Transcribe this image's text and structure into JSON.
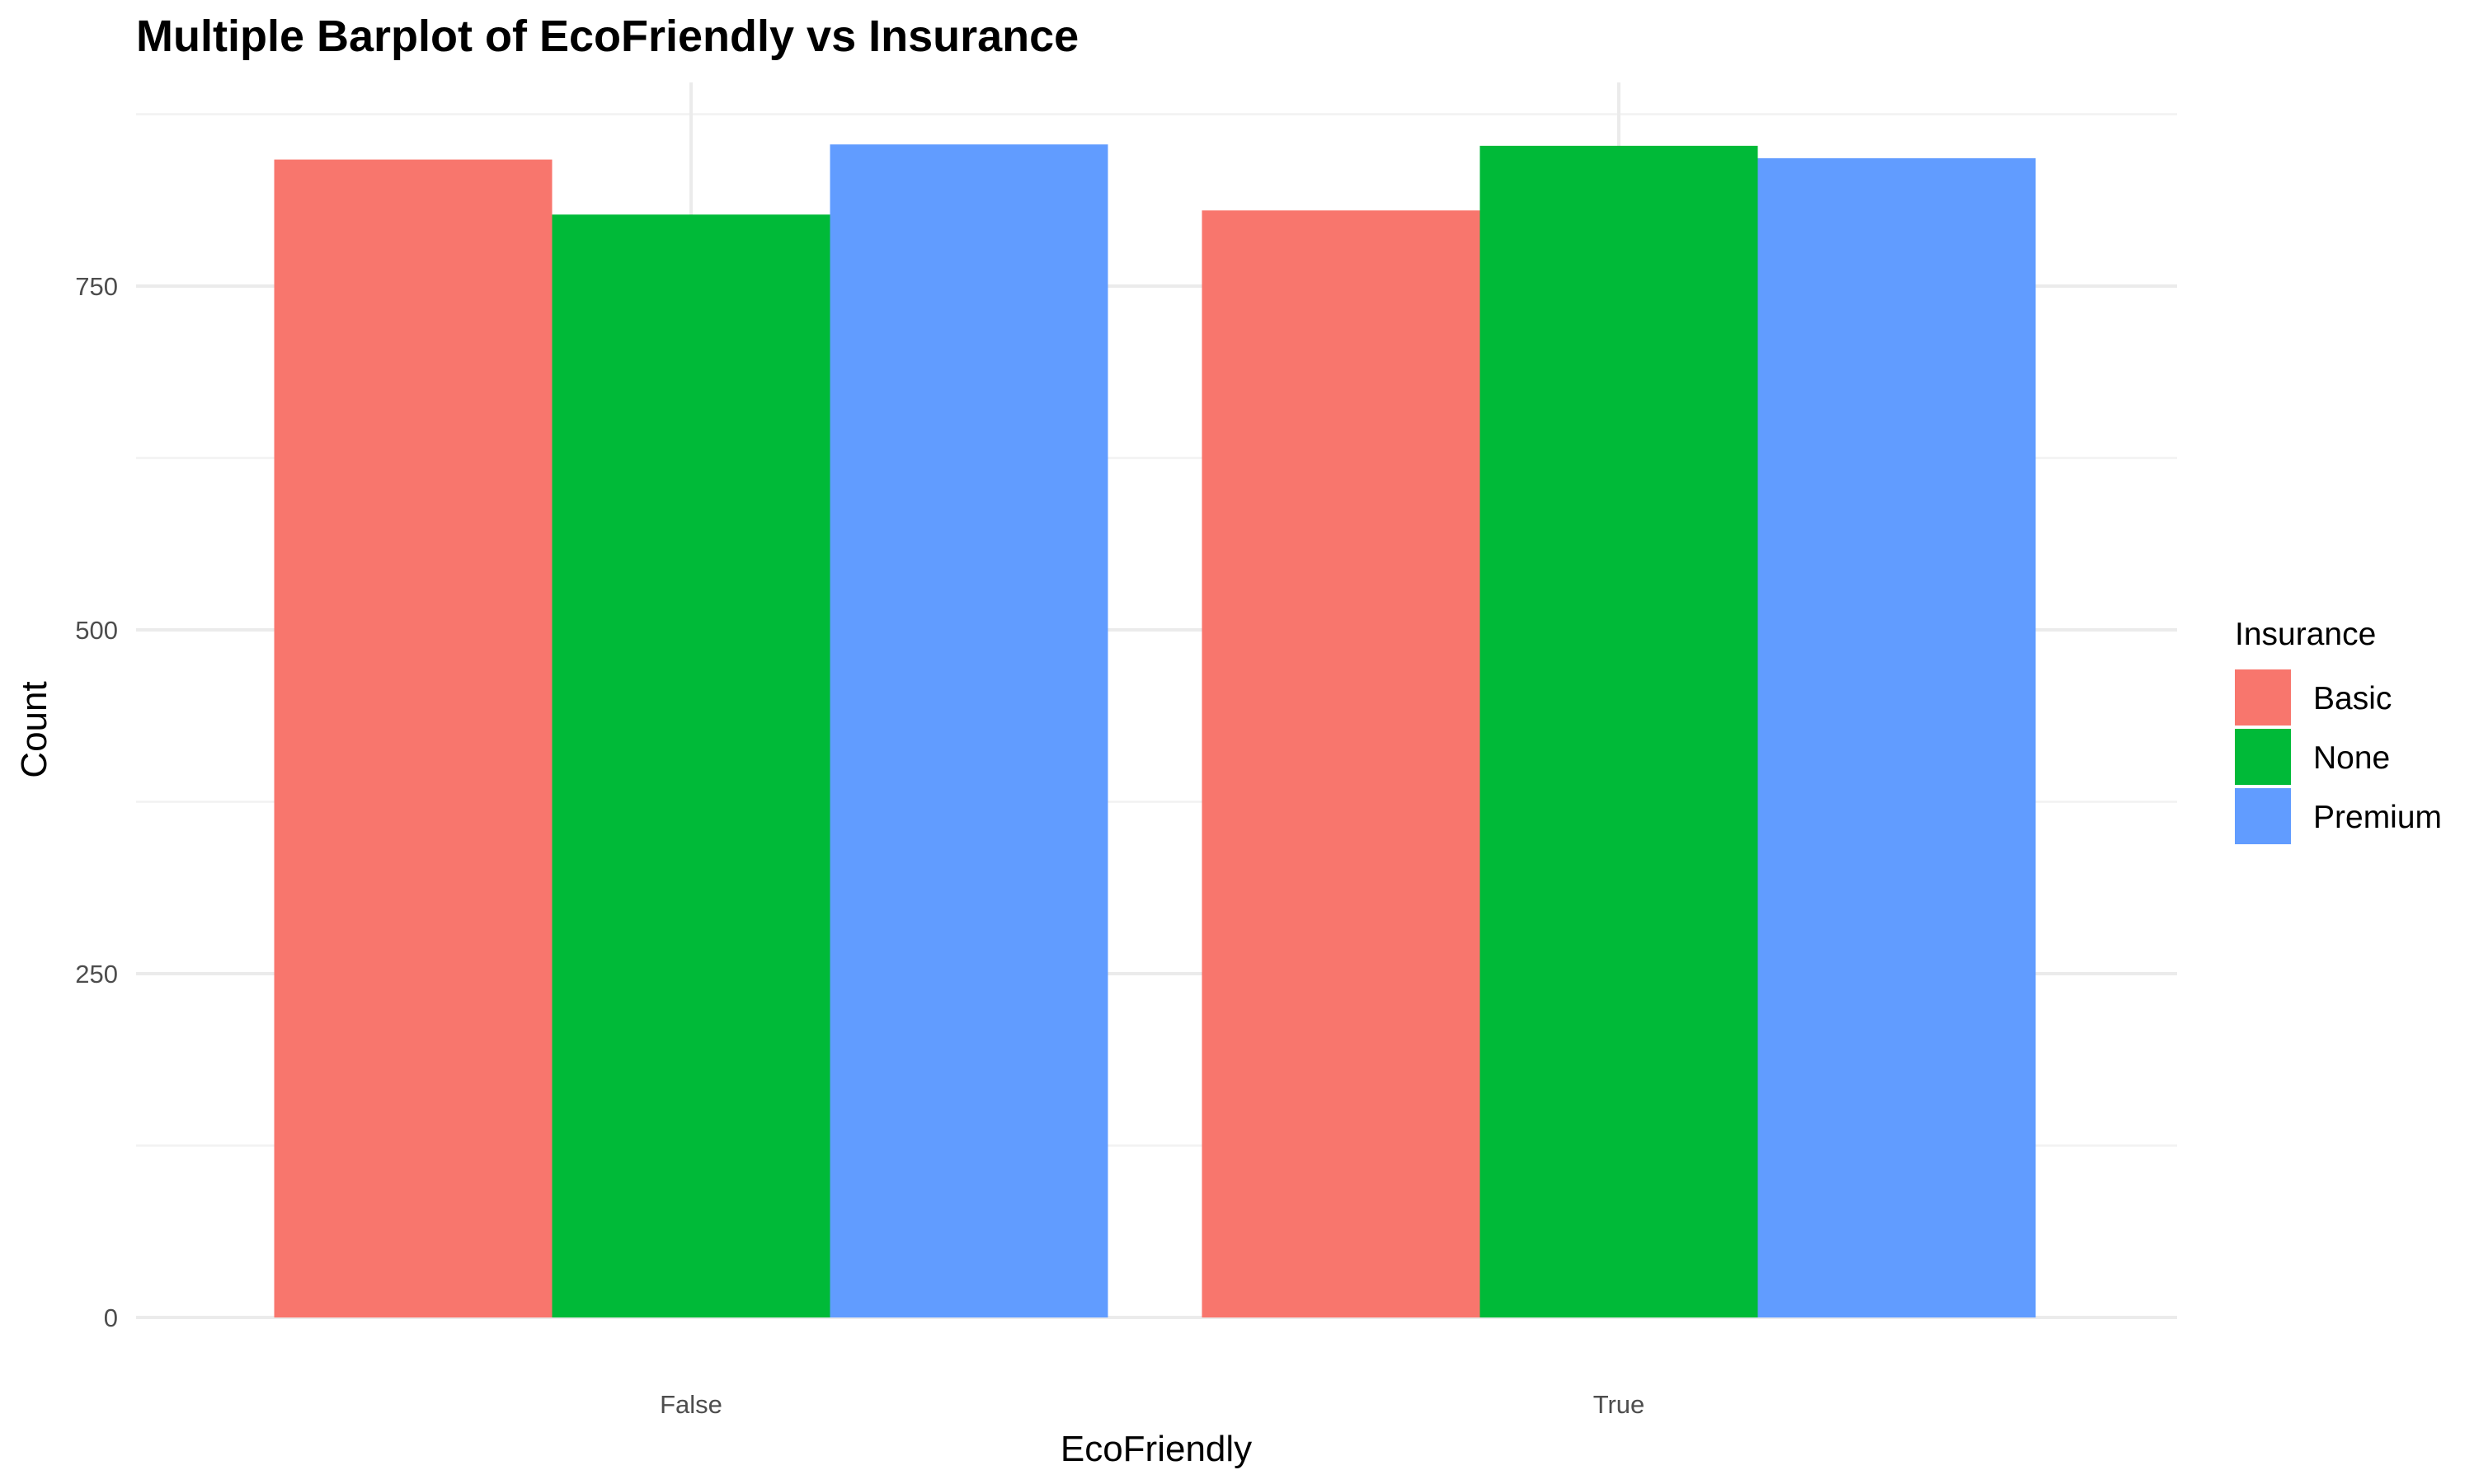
{
  "chart_data": {
    "type": "bar",
    "title": "Multiple Barplot of EcoFriendly vs Insurance",
    "xlabel": "EcoFriendly",
    "ylabel": "Count",
    "categories": [
      "False",
      "True"
    ],
    "series": [
      {
        "name": "Basic",
        "color": "#F8766D",
        "values": [
          842,
          805
        ]
      },
      {
        "name": "None",
        "color": "#00BA38",
        "values": [
          802,
          852
        ]
      },
      {
        "name": "Premium",
        "color": "#619CFF",
        "values": [
          853,
          843
        ]
      }
    ],
    "ylim": [
      0,
      880
    ],
    "yticks": [
      0,
      250,
      500,
      750
    ],
    "grid": true,
    "legend": {
      "title": "Insurance",
      "position": "right"
    }
  }
}
